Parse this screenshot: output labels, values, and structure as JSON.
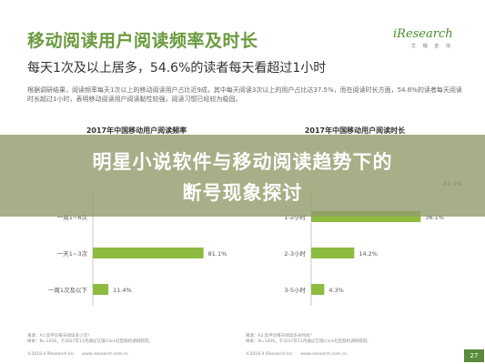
{
  "slide": {
    "title": "移动阅读用户阅读频率及时长",
    "subtitle": "每天1次及以上居多，54.6%的读者每天看超过1小时",
    "body_text": "根据调研结果，阅读频率每天1次以上的移动阅读用户占比近9成，其中每天阅读3次以上的用户占比达37.5%，而在阅读时长方面，54.6%的读者每天阅读时长超过1小时，表明移动阅读用户阅读黏性较强，阅读习惯已经较为稳固。",
    "logo_text": "iResearch",
    "logo_sub": "艾 瑞 咨 询",
    "page_number": "27"
  },
  "banner": {
    "line1": "明星小说软件与移动阅读趋势下的",
    "line2": "断号现象探讨"
  },
  "footnote": {
    "left_line1": "样本：N=1456，于2017年11月通过艾瑞iClick社区联机调研获得。",
    "left_line2": "来源：A1.您平均每天阅读多少次？",
    "right_line1": "样本：N=1456，于2017年11月通过艾瑞iClick社区联机调研获得。",
    "right_line2": "来源：A2.您平均每天阅读多长时间？",
    "copyright": "©2018.4 iResearch Inc",
    "site": "www.iresearch.com.cn"
  },
  "colors": {
    "title": "#6a9a3e",
    "bar": "#8dbb3f",
    "banner": "#929e6c",
    "page_number_bg": "#5a8a3c"
  },
  "chart_data": [
    {
      "type": "bar",
      "orientation": "horizontal",
      "title": "2017年中国移动用户阅读频率",
      "categories": [
        "一周1~6次",
        "一天1~3次",
        "一周1次及以下"
      ],
      "values": [
        null,
        81.1,
        11.4
      ],
      "value_labels": [
        "",
        "81.1%",
        "11.4%"
      ],
      "xlim": [
        0,
        100
      ]
    },
    {
      "type": "bar",
      "orientation": "horizontal",
      "title": "2017年中国移动用户阅读时长",
      "categories": [
        "1-2小时",
        "2-3小时",
        "3-5小时"
      ],
      "values": [
        36.1,
        14.2,
        4.3
      ],
      "value_labels": [
        "36.1%",
        "14.2%",
        "4.3%"
      ],
      "top_bar_value_label": "41.4%",
      "xlim": [
        0,
        45
      ]
    }
  ]
}
